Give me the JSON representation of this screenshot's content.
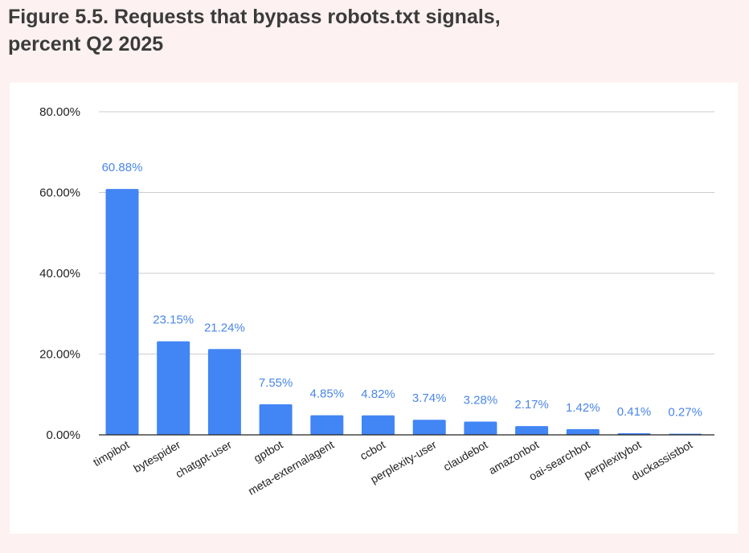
{
  "figure": {
    "title_line1": "Figure 5.5. Requests that bypass robots.txt signals,",
    "title_line2": "percent Q2 2025"
  },
  "colors": {
    "background": "#fdf1f1",
    "panel": "#ffffff",
    "bar": "#4285f4",
    "label": "#4a86e8",
    "gridline": "#cccccc",
    "axis": "#222222",
    "text": "#3b3b3b"
  },
  "chart_data": {
    "type": "bar",
    "categories": [
      "timpibot",
      "bytespider",
      "chatgpt-user",
      "gptbot",
      "meta-externalagent",
      "ccbot",
      "perplexity-user",
      "claudebot",
      "amazonbot",
      "oai-searchbot",
      "perplexitybot",
      "duckassistbot"
    ],
    "values": [
      60.88,
      23.15,
      21.24,
      7.55,
      4.85,
      4.82,
      3.74,
      3.28,
      2.17,
      1.42,
      0.41,
      0.27
    ],
    "data_labels": [
      "60.88%",
      "23.15%",
      "21.24%",
      "7.55%",
      "4.85%",
      "4.82%",
      "3.74%",
      "3.28%",
      "2.17%",
      "1.42%",
      "0.41%",
      "0.27%"
    ],
    "yticks": [
      0,
      20,
      40,
      60,
      80
    ],
    "ytick_labels": [
      "0.00%",
      "20.00%",
      "40.00%",
      "60.00%",
      "80.00%"
    ],
    "ylim": [
      0,
      80
    ],
    "grid": true,
    "legend": "none",
    "title": "",
    "xlabel": "",
    "ylabel": ""
  }
}
